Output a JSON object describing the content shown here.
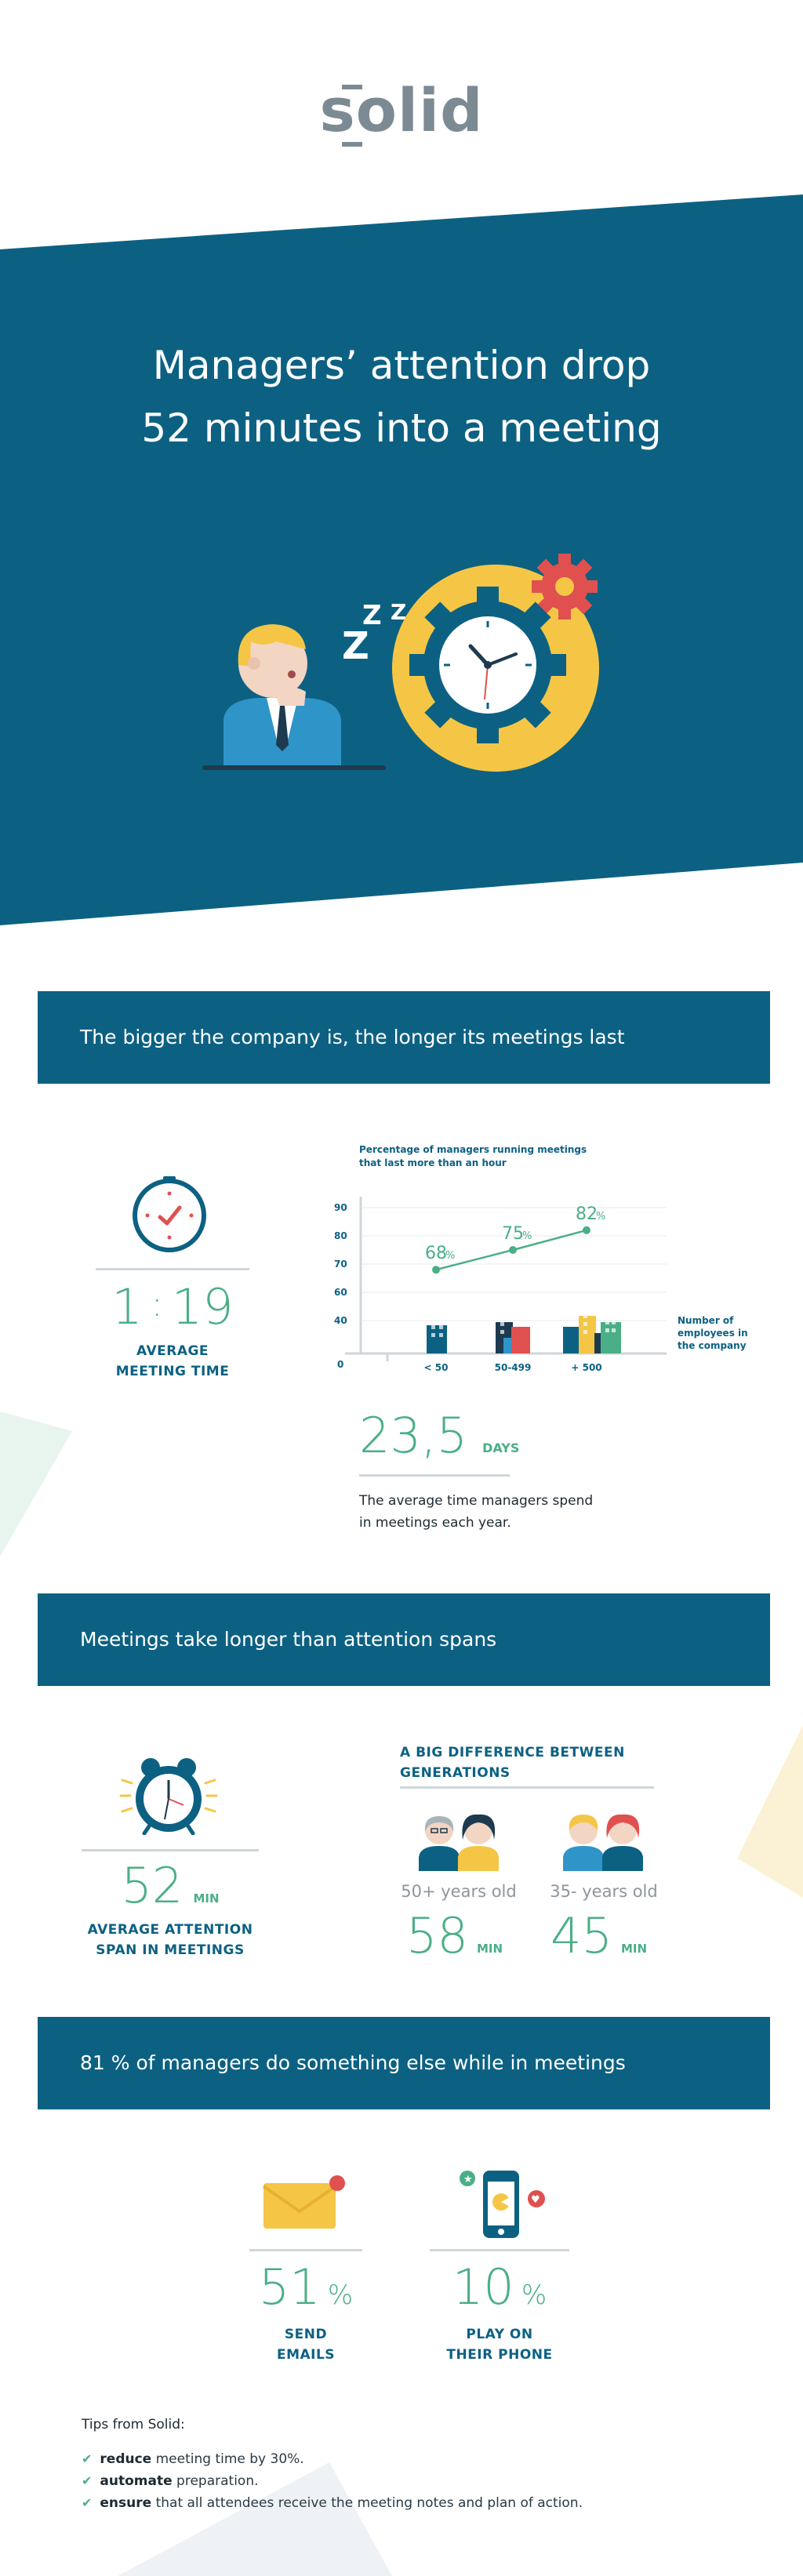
{
  "logo": {
    "text": "solid"
  },
  "hero": {
    "title_line1": "Managers’ attention drop",
    "title_line2": "52 minutes into a meeting"
  },
  "section1": {
    "banner": "The bigger the company is, the longer its meetings last",
    "avg_time": {
      "hours": "1",
      "sep": ":",
      "minutes": "19",
      "label_line1": "AVERAGE",
      "label_line2": "MEETING TIME"
    },
    "days": {
      "value": "23,5",
      "unit": "DAYS",
      "desc_line1": "The average time managers spend",
      "desc_line2": "in meetings each year."
    }
  },
  "chart_data": {
    "type": "line",
    "title": "Percentage of managers running meetings that last more than an hour",
    "title_line1": "Percentage of managers running meetings",
    "title_line2": "that last more than an hour",
    "categories": [
      "< 50",
      "50-499",
      "+ 500"
    ],
    "values": [
      68,
      75,
      82
    ],
    "value_labels": [
      "68",
      "75",
      "82"
    ],
    "pct": "%",
    "y_ticks": [
      "90",
      "80",
      "70",
      "60",
      "40",
      "0"
    ],
    "xlabel_line1": "Number of",
    "xlabel_line2": "employees in",
    "xlabel_line3": "the company",
    "ylim": [
      0,
      95
    ],
    "grid": true
  },
  "section2": {
    "banner": "Meetings take longer than attention spans",
    "attention": {
      "value": "52",
      "unit": "MIN",
      "label_line1": "AVERAGE ATTENTION",
      "label_line2": "SPAN IN MEETINGS"
    },
    "generations": {
      "title_line1": "A BIG DIFFERENCE BETWEEN",
      "title_line2": "GENERATIONS",
      "older": {
        "label": "50+ years old",
        "value": "58",
        "unit": "MIN"
      },
      "younger": {
        "label": "35- years old",
        "value": "45",
        "unit": "MIN"
      }
    }
  },
  "section3": {
    "banner": "81 % of managers do something else while in meetings",
    "emails": {
      "value": "51",
      "pct": "%",
      "label_line1": "SEND",
      "label_line2": "EMAILS"
    },
    "phone": {
      "value": "10",
      "pct": "%",
      "label_line1": "PLAY ON",
      "label_line2": "THEIR PHONE"
    }
  },
  "tips": {
    "title": "Tips from Solid:",
    "items": [
      {
        "bold": "reduce",
        "rest": " meeting time by 30%."
      },
      {
        "bold": "automate",
        "rest": " preparation."
      },
      {
        "bold": "ensure",
        "rest": " that all attendees receive the meeting notes and plan of action."
      }
    ]
  },
  "colors": {
    "primary": "#0c6183",
    "green": "#4aaf86",
    "yellow": "#f5c645",
    "red": "#e0504f",
    "grey": "#7c8a94"
  }
}
